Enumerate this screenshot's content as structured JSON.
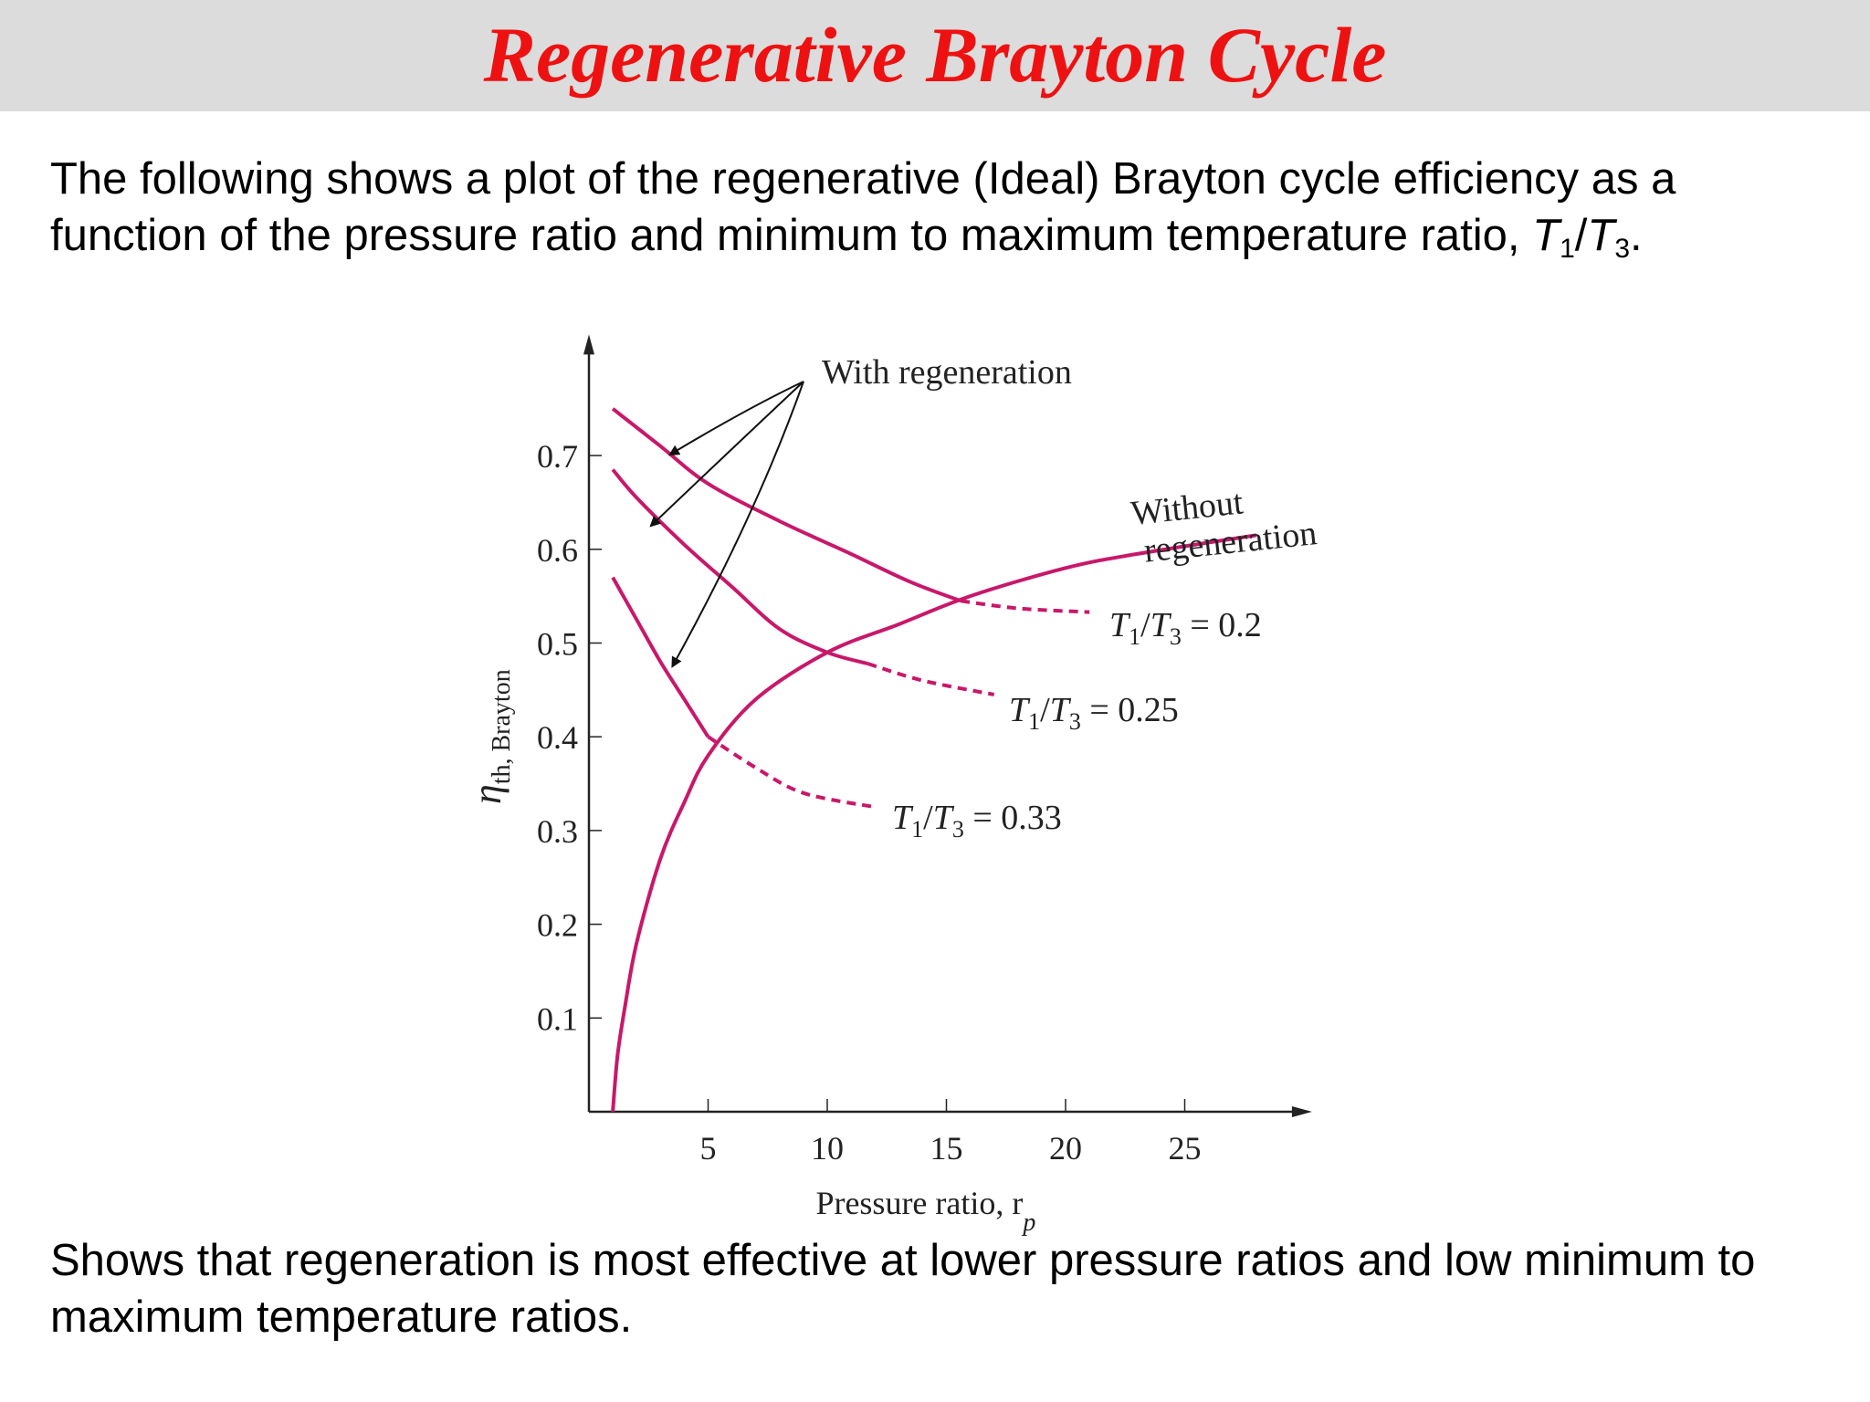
{
  "slide": {
    "title": "Regenerative Brayton Cycle",
    "intro": {
      "text": "The following shows a plot of the regenerative (Ideal) Brayton cycle efficiency as a function of the pressure ratio and minimum to maximum temperature ratio,",
      "ratio_T": "T",
      "ratio_sub1": "1",
      "ratio_slash": "/",
      "ratio_sub3": "3",
      "end": "."
    },
    "conclusion": "Shows that regeneration is most effective at lower pressure ratios and low minimum to maximum temperature ratios."
  },
  "colors": {
    "curve": "#c8186a",
    "title": "#ee1111",
    "title_bar": "#dcdcdc"
  },
  "chart_data": {
    "type": "line",
    "xlabel": "Pressure ratio, r",
    "xlabel_sub": "p",
    "ylabel": "η",
    "ylabel_sub": "th, Brayton",
    "x_ticks": [
      5,
      10,
      15,
      20,
      25
    ],
    "y_ticks": [
      0.1,
      0.2,
      0.3,
      0.4,
      0.5,
      0.6,
      0.7
    ],
    "xlim": [
      0,
      29
    ],
    "ylim": [
      0,
      0.8
    ],
    "grid": false,
    "series": [
      {
        "name": "Without regeneration",
        "style": "solid",
        "points": [
          [
            1.0,
            0.0
          ],
          [
            1.2,
            0.06
          ],
          [
            1.5,
            0.11
          ],
          [
            2,
            0.18
          ],
          [
            3,
            0.27
          ],
          [
            4,
            0.33
          ],
          [
            5,
            0.38
          ],
          [
            7,
            0.44
          ],
          [
            10,
            0.49
          ],
          [
            13,
            0.52
          ],
          [
            16,
            0.55
          ],
          [
            20,
            0.58
          ],
          [
            23,
            0.595
          ],
          [
            28,
            0.615
          ]
        ]
      },
      {
        "name": "T1/T3 = 0.2",
        "style": "solid-then-dashed",
        "solid_points": [
          [
            1,
            0.75
          ],
          [
            3,
            0.71
          ],
          [
            5,
            0.67
          ],
          [
            8,
            0.63
          ],
          [
            11,
            0.595
          ],
          [
            13.5,
            0.565
          ],
          [
            15.6,
            0.545
          ]
        ],
        "dashed_points": [
          [
            15.6,
            0.545
          ],
          [
            18,
            0.537
          ],
          [
            21,
            0.533
          ]
        ]
      },
      {
        "name": "T1/T3 = 0.25",
        "style": "solid-then-dashed",
        "solid_points": [
          [
            1,
            0.685
          ],
          [
            2,
            0.655
          ],
          [
            4,
            0.605
          ],
          [
            6,
            0.56
          ],
          [
            8,
            0.515
          ],
          [
            10,
            0.49
          ],
          [
            11.7,
            0.478
          ]
        ],
        "dashed_points": [
          [
            11.7,
            0.478
          ],
          [
            14,
            0.46
          ],
          [
            17,
            0.445
          ]
        ]
      },
      {
        "name": "T1/T3 = 0.33",
        "style": "solid-then-dashed",
        "solid_points": [
          [
            1,
            0.57
          ],
          [
            2,
            0.525
          ],
          [
            3,
            0.48
          ],
          [
            4,
            0.44
          ],
          [
            5,
            0.4
          ]
        ],
        "dashed_points": [
          [
            5,
            0.4
          ],
          [
            7,
            0.367
          ],
          [
            9,
            0.34
          ],
          [
            12,
            0.325
          ]
        ]
      }
    ],
    "annotations": {
      "with_regeneration": "With regeneration",
      "without_line1": "Without",
      "without_line2": "regeneration",
      "ratio_label_T": "T",
      "ratio_label_sub1": "1",
      "ratio_label_slash": "/",
      "ratio_label_sub3": "3",
      "ratio_label_eq": " = ",
      "ratio_values": [
        "0.2",
        "0.25",
        "0.33"
      ]
    }
  }
}
